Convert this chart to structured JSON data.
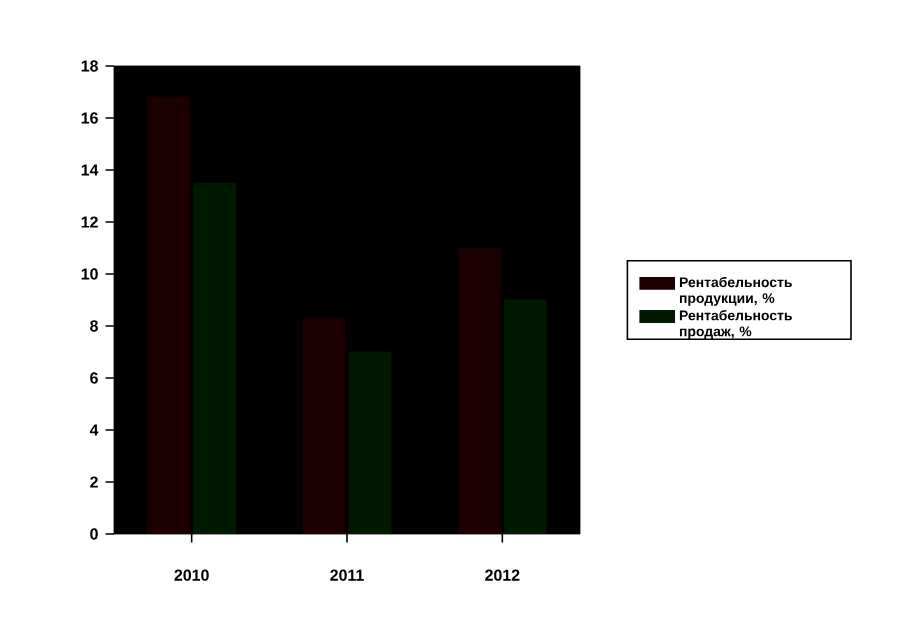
{
  "chart_data": {
    "type": "bar",
    "categories": [
      "2010",
      "2011",
      "2012"
    ],
    "series": [
      {
        "name": "Рентабельность продукции, %",
        "color": "#1c0000",
        "values": [
          16.8,
          8.3,
          11.0
        ]
      },
      {
        "name": "Рентабельность продаж, %",
        "color": "#001a00",
        "values": [
          13.5,
          7.0,
          9.0
        ]
      }
    ],
    "ylim": [
      0,
      18
    ],
    "yticks": [
      0,
      2,
      4,
      6,
      8,
      10,
      12,
      14,
      16,
      18
    ],
    "legend": "right",
    "grid": false
  }
}
